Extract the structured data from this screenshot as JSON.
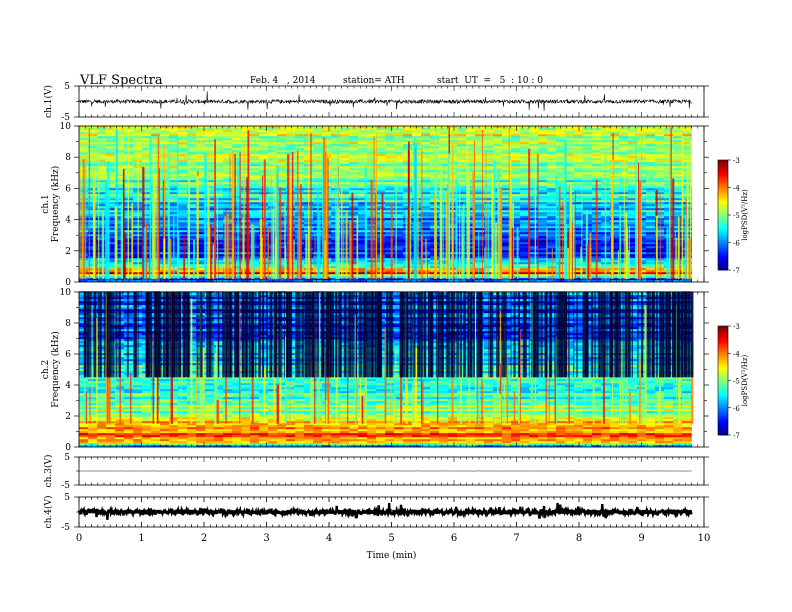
{
  "header": {
    "title": "VLF  Spectra",
    "date": "Feb. 4   , 2014",
    "station": "station= ATH",
    "start": "start  UT  =   5  : 10 : 0"
  },
  "chart_data": [
    {
      "type": "line",
      "panel": "ch1-waveform",
      "ylabel": "ch.1(V)",
      "yticks": [
        "5",
        "-5"
      ],
      "ylim": [
        -5,
        5
      ],
      "x_extent_min": 9.8,
      "description_level": 0,
      "amplitude_noise": 0.6,
      "color": "#000000"
    },
    {
      "type": "heatmap",
      "panel": "ch1-spectrogram",
      "ylabel": [
        "ch.1",
        "Frequency (kHz)"
      ],
      "yticks": [
        "0",
        "2",
        "4",
        "6",
        "8",
        "10"
      ],
      "ylim": [
        0,
        10
      ],
      "x_extent_min": 9.8,
      "profile_logpsd": [
        {
          "f": 0.0,
          "v": -6.6
        },
        {
          "f": 0.3,
          "v": -5.6
        },
        {
          "f": 0.6,
          "v": -3.5
        },
        {
          "f": 0.9,
          "v": -4.8
        },
        {
          "f": 1.3,
          "v": -5.6
        },
        {
          "f": 2.2,
          "v": -6.6
        },
        {
          "f": 3.0,
          "v": -6.0
        },
        {
          "f": 5.0,
          "v": -5.6
        },
        {
          "f": 6.5,
          "v": -5.1
        },
        {
          "f": 10.0,
          "v": -4.8
        }
      ],
      "colorbar": {
        "label": "logPSD(V²/Hz)",
        "ticks": [
          "-3",
          "-4",
          "-5",
          "-6",
          "-7"
        ],
        "range": [
          -7,
          -3
        ]
      }
    },
    {
      "type": "heatmap",
      "panel": "ch2-spectrogram",
      "ylabel": [
        "ch.2",
        "Frequency (kHz)"
      ],
      "yticks": [
        "0",
        "2",
        "4",
        "6",
        "8",
        "10"
      ],
      "ylim": [
        0,
        10
      ],
      "x_extent_min": 9.8,
      "profile_logpsd": [
        {
          "f": 0.0,
          "v": -6.4
        },
        {
          "f": 0.3,
          "v": -4.6
        },
        {
          "f": 0.7,
          "v": -3.8
        },
        {
          "f": 1.2,
          "v": -4.3
        },
        {
          "f": 2.0,
          "v": -4.8
        },
        {
          "f": 3.0,
          "v": -5.3
        },
        {
          "f": 4.5,
          "v": -5.2
        },
        {
          "f": 6.0,
          "v": -5.8
        },
        {
          "f": 8.0,
          "v": -6.2
        },
        {
          "f": 10.0,
          "v": -6.0
        }
      ],
      "colorbar": {
        "label": "logPSD(V²/Hz)",
        "ticks": [
          "-3",
          "-4",
          "-5",
          "-6",
          "-7"
        ],
        "range": [
          -7,
          -3
        ]
      }
    },
    {
      "type": "line",
      "panel": "ch3-waveform",
      "ylabel": "ch.3(V)",
      "yticks": [
        "5",
        "-5"
      ],
      "ylim": [
        -5,
        5
      ],
      "x_extent_min": 9.8,
      "description_level": 0,
      "amplitude_noise": 0.05,
      "color": "#000000"
    },
    {
      "type": "line",
      "panel": "ch4-waveform",
      "ylabel": "ch.4(V)",
      "yticks": [
        "5",
        "-5"
      ],
      "ylim": [
        -5,
        5
      ],
      "x_extent_min": 9.8,
      "description_level": 0,
      "amplitude_noise": 0.8,
      "color": "#000000"
    }
  ],
  "xaxis": {
    "label": "Time  (min)",
    "ticks": [
      "0",
      "1",
      "2",
      "3",
      "4",
      "5",
      "6",
      "7",
      "8",
      "9",
      "10"
    ],
    "range": [
      0,
      10
    ]
  }
}
